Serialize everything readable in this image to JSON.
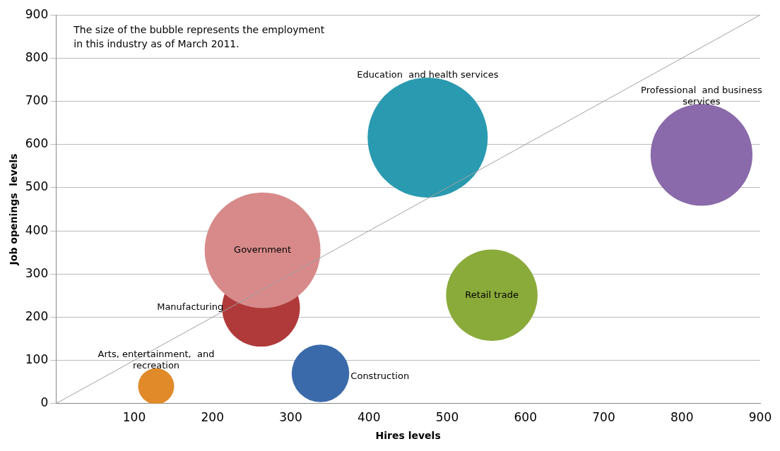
{
  "chart_data": {
    "type": "bubble",
    "xlabel": "Hires levels",
    "ylabel": "Job openings  levels",
    "annotations": [
      "The size of the bubble represents the employment\nin this industry as of March 2011."
    ],
    "xlim": [
      0,
      900
    ],
    "xticks": [
      100,
      200,
      300,
      400,
      500,
      600,
      700,
      800,
      900
    ],
    "ylim": [
      0,
      900
    ],
    "yticks": [
      0,
      100,
      200,
      300,
      400,
      500,
      600,
      700,
      800,
      900
    ],
    "grid": "y",
    "legend": false,
    "series": [
      {
        "name": "Arts, entertainment,  and\nrecreation",
        "color": "#e08a2a",
        "x": [
          128
        ],
        "values": [
          40
        ],
        "sizes": [
          0.09
        ]
      },
      {
        "name": "Manufacturing",
        "color": "#b03a3a",
        "x": [
          262
        ],
        "values": [
          222
        ],
        "sizes": [
          0.42
        ]
      },
      {
        "name": "Government",
        "color": "#d88a8a",
        "x": [
          264
        ],
        "values": [
          355
        ],
        "sizes": [
          0.93
        ]
      },
      {
        "name": "Construction",
        "color": "#3a6aaa",
        "x": [
          338
        ],
        "values": [
          70
        ],
        "sizes": [
          0.23
        ]
      },
      {
        "name": "Education  and health services",
        "color": "#2a9ab0",
        "x": [
          475
        ],
        "values": [
          616
        ],
        "sizes": [
          1
        ]
      },
      {
        "name": "Retail trade",
        "color": "#8aaa3a",
        "x": [
          557
        ],
        "values": [
          251
        ],
        "sizes": [
          0.58
        ]
      },
      {
        "name": "Professional  and business\nservices",
        "color": "#8a6aaa",
        "x": [
          825
        ],
        "values": [
          576
        ],
        "sizes": [
          0.72
        ]
      },
      {
        "type": "line",
        "color": "#a0a0a0",
        "x": [
          0,
          900
        ],
        "values": [
          0,
          900
        ]
      }
    ]
  }
}
